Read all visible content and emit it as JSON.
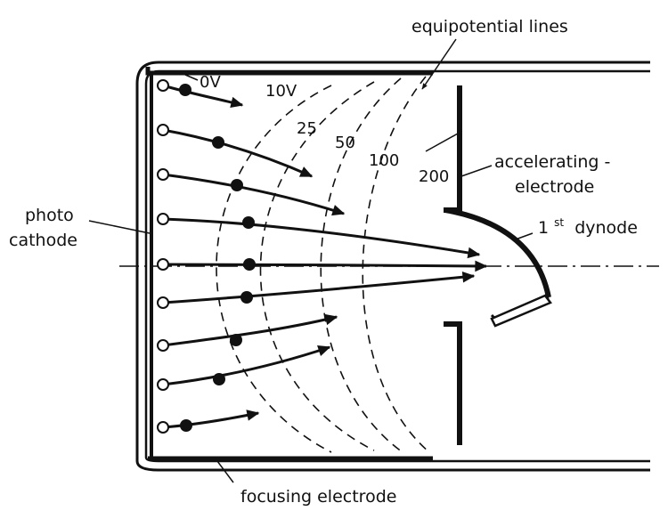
{
  "labels": {
    "equipotential_lines": "equipotential lines",
    "v0": "0V",
    "v10": "10V",
    "v25": "25",
    "v50": "50",
    "v100": "100",
    "v200": "200",
    "accelerating_line1": "accelerating -",
    "accelerating_line2": "electrode",
    "photo_line1": "photo",
    "photo_line2": "cathode",
    "dynode_number": "1",
    "dynode_sup": "st",
    "dynode_text": " dynode",
    "focusing_electrode": "focusing electrode"
  }
}
